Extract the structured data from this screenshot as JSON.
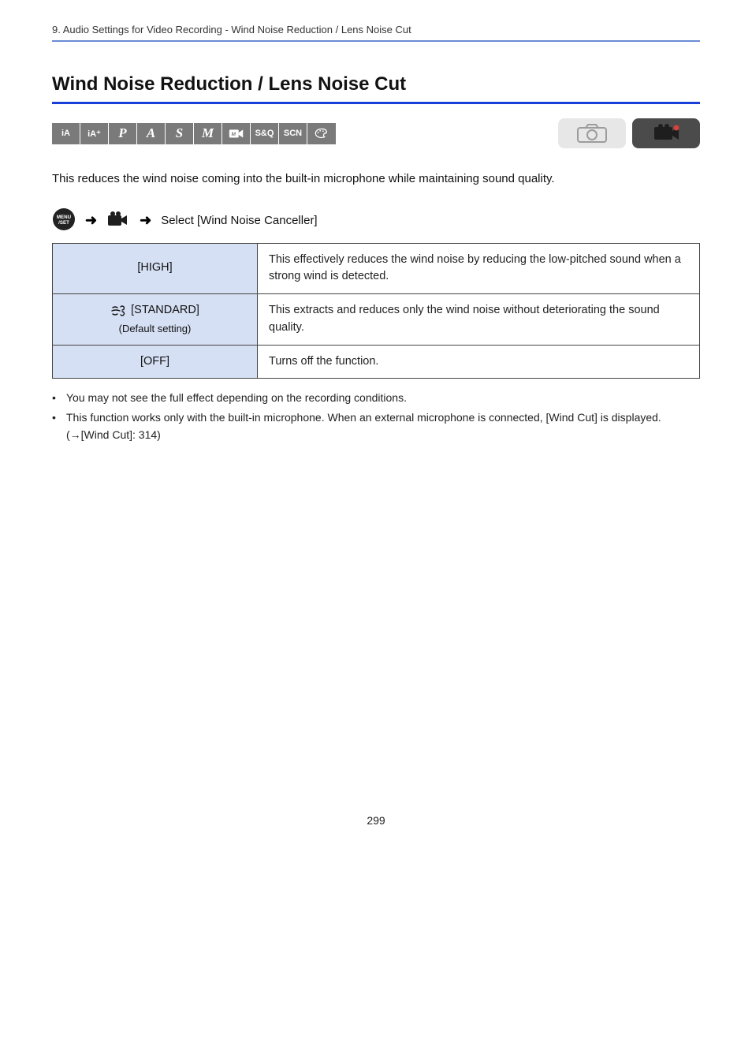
{
  "breadcrumb": "9. Audio Settings for Video Recording - Wind Noise Reduction / Lens Noise Cut",
  "heading": "Wind Noise Reduction / Lens Noise Cut",
  "mode_icons": [
    {
      "type": "text",
      "label": "iA",
      "small": true
    },
    {
      "type": "text",
      "label": "iA⁺",
      "small": true
    },
    {
      "type": "text",
      "label": "P"
    },
    {
      "type": "text",
      "label": "A"
    },
    {
      "type": "text",
      "label": "S"
    },
    {
      "type": "text",
      "label": "M"
    },
    {
      "type": "svg",
      "shape": "bpm"
    },
    {
      "type": "text",
      "label": "S&Q",
      "small": true
    },
    {
      "type": "text",
      "label": "SCN",
      "small": true
    },
    {
      "type": "svg",
      "shape": "palette"
    }
  ],
  "intro": "This reduces the wind noise coming into the built-in microphone while maintaining sound quality.",
  "menupath_label": "Select [Wind Noise Canceller]",
  "table": {
    "rows": [
      {
        "key_main": "[HIGH]",
        "key_sub": null,
        "val": "This effectively reduces the wind noise by reducing the low-pitched sound when a strong wind is detected."
      },
      {
        "key_main": "[STANDARD]",
        "key_sub": "(Default setting)",
        "val": "This extracts and reduces only the wind noise without deteriorating the sound quality."
      },
      {
        "key_main": "[OFF]",
        "key_sub": null,
        "val": "Turns off the function."
      }
    ]
  },
  "notes": [
    "You may not see the full effect depending on the recording conditions.",
    "This function works only with the built-in microphone. When an external microphone is connected, [Wind Cut] is displayed. (→[Wind Cut]: 314)"
  ],
  "page_number": "299",
  "colors": {
    "topline": "#6a8dd5",
    "thick_rule": "#1a3fd8",
    "mode_bg": "#7a7a7a",
    "mode_fg": "#ffffff",
    "photo_bg": "#e7e7e7",
    "photo_fg": "#9c9c9c",
    "video_bg": "#4b4b4b",
    "video_fg": "#1e1e1e",
    "video_dot": "#d9413c",
    "table_key_bg": "#d6e0f4",
    "table_border": "#444444"
  }
}
